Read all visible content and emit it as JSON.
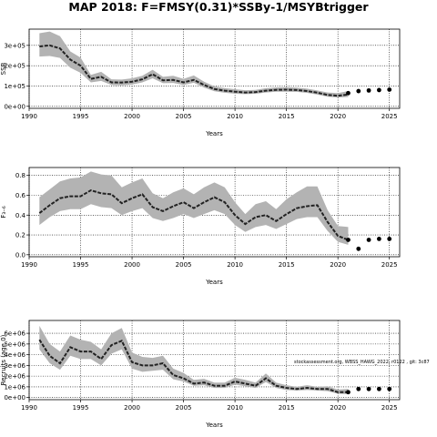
{
  "title": "MAP 2018: F=FMSY(0.31)*SSBy-1/MSYBtrigger",
  "colors": {
    "band": "#b3b3b3",
    "line": "#222222",
    "point": "#000000",
    "grid": "#000000"
  },
  "chart_data": [
    {
      "type": "line",
      "xlabel": "Years",
      "ylabel": "SSB",
      "xlim": [
        1990,
        2026
      ],
      "ylim": [
        -10000,
        380000
      ],
      "x_ticks": [
        1990,
        1995,
        2000,
        2005,
        2010,
        2015,
        2020,
        2025
      ],
      "y_ticks": [
        0,
        100000,
        200000,
        300000
      ],
      "x_tick_labels": [
        "1990",
        "1995",
        "2000",
        "2005",
        "2010",
        "2015",
        "2020",
        "2025"
      ],
      "y_tick_labels": [
        "0e+00",
        "1e+05",
        "2e+05",
        "3e+05"
      ],
      "grid": true,
      "series": [
        {
          "x": [
            1991,
            1992,
            1993,
            1994,
            1995,
            1996,
            1997,
            1998,
            1999,
            2000,
            2001,
            2002,
            2003,
            2004,
            2005,
            2006,
            2007,
            2008,
            2009,
            2010,
            2011,
            2012,
            2013,
            2014,
            2015,
            2016,
            2017,
            2018,
            2019,
            2020,
            2021
          ],
          "median": [
            295000,
            300000,
            285000,
            230000,
            200000,
            135000,
            145000,
            118000,
            117000,
            121000,
            133000,
            158000,
            128000,
            130000,
            118000,
            130000,
            105000,
            85000,
            77000,
            72000,
            68000,
            70000,
            77000,
            81000,
            82000,
            80000,
            75000,
            67000,
            56000,
            52000,
            58000
          ],
          "lower": [
            245000,
            248000,
            238000,
            190000,
            165000,
            118000,
            125000,
            105000,
            103000,
            107000,
            118000,
            138000,
            114000,
            115000,
            105000,
            116000,
            92000,
            74000,
            67000,
            62000,
            60000,
            62000,
            68000,
            72000,
            72000,
            71000,
            66000,
            58000,
            47000,
            43000,
            46000
          ],
          "upper": [
            360000,
            368000,
            345000,
            270000,
            240000,
            155000,
            170000,
            133000,
            132000,
            138000,
            150000,
            180000,
            145000,
            150000,
            135000,
            152000,
            121000,
            98000,
            90000,
            84000,
            79000,
            81000,
            89000,
            93000,
            94000,
            92000,
            87000,
            78000,
            68000,
            65000,
            75000
          ]
        }
      ],
      "projection": {
        "x": [
          2021,
          2022,
          2023,
          2024,
          2025
        ],
        "y": [
          65000,
          75000,
          78000,
          80000,
          82000
        ]
      }
    },
    {
      "type": "line",
      "xlabel": "Years",
      "ylabel": "F₃₋₆",
      "xlim": [
        1990,
        2026
      ],
      "ylim": [
        -0.02,
        0.88
      ],
      "x_ticks": [
        1990,
        1995,
        2000,
        2005,
        2010,
        2015,
        2020,
        2025
      ],
      "y_ticks": [
        0,
        0.2,
        0.4,
        0.6,
        0.8
      ],
      "x_tick_labels": [
        "1990",
        "1995",
        "2000",
        "2005",
        "2010",
        "2015",
        "2020",
        "2025"
      ],
      "y_tick_labels": [
        "0.0",
        "0.2",
        "0.4",
        "0.6",
        "0.8"
      ],
      "grid": true,
      "series": [
        {
          "x": [
            1991,
            1992,
            1993,
            1994,
            1995,
            1996,
            1997,
            1998,
            1999,
            2000,
            2001,
            2002,
            2003,
            2004,
            2005,
            2006,
            2007,
            2008,
            2009,
            2010,
            2011,
            2012,
            2013,
            2014,
            2015,
            2016,
            2017,
            2018,
            2019,
            2020,
            2021
          ],
          "median": [
            0.42,
            0.5,
            0.57,
            0.59,
            0.59,
            0.65,
            0.62,
            0.61,
            0.52,
            0.57,
            0.61,
            0.48,
            0.44,
            0.49,
            0.53,
            0.47,
            0.53,
            0.58,
            0.53,
            0.4,
            0.31,
            0.38,
            0.4,
            0.34,
            0.41,
            0.47,
            0.49,
            0.5,
            0.33,
            0.19,
            0.15
          ],
          "lower": [
            0.3,
            0.38,
            0.44,
            0.46,
            0.46,
            0.51,
            0.48,
            0.47,
            0.4,
            0.44,
            0.47,
            0.37,
            0.34,
            0.37,
            0.41,
            0.37,
            0.41,
            0.45,
            0.41,
            0.3,
            0.23,
            0.28,
            0.3,
            0.26,
            0.31,
            0.36,
            0.38,
            0.38,
            0.24,
            0.13,
            0.1
          ],
          "upper": [
            0.58,
            0.66,
            0.74,
            0.77,
            0.78,
            0.84,
            0.81,
            0.8,
            0.68,
            0.73,
            0.77,
            0.62,
            0.57,
            0.63,
            0.67,
            0.61,
            0.68,
            0.73,
            0.68,
            0.53,
            0.41,
            0.51,
            0.54,
            0.46,
            0.56,
            0.63,
            0.69,
            0.69,
            0.45,
            0.29,
            0.28
          ]
        }
      ],
      "projection": {
        "x": [
          2021,
          2022,
          2023,
          2024,
          2025
        ],
        "y": [
          0.15,
          0.06,
          0.15,
          0.16,
          0.16
        ]
      }
    },
    {
      "type": "line",
      "xlabel": "Years",
      "ylabel": "Recruits (age 0)",
      "annotation": "stockassessment.org, WBSS_HAWG_2022, r0122 , git: 3c87",
      "xlim": [
        1990,
        2026
      ],
      "ylim": [
        -200000,
        7200000
      ],
      "x_ticks": [
        1990,
        1995,
        2000,
        2005,
        2010,
        2015,
        2020,
        2025
      ],
      "y_ticks": [
        0,
        1000000,
        2000000,
        3000000,
        4000000,
        5000000,
        6000000
      ],
      "x_tick_labels": [
        "1990",
        "1995",
        "2000",
        "2005",
        "2010",
        "2015",
        "2020",
        "2025"
      ],
      "y_tick_labels": [
        "0e+00",
        "1e+06",
        "2e+06",
        "3e+06",
        "4e+06",
        "5e+06",
        "6e+06"
      ],
      "grid": true,
      "series": [
        {
          "x": [
            1991,
            1992,
            1993,
            1994,
            1995,
            1996,
            1997,
            1998,
            1999,
            2000,
            2001,
            2002,
            2003,
            2004,
            2005,
            2006,
            2007,
            2008,
            2009,
            2010,
            2011,
            2012,
            2013,
            2014,
            2015,
            2016,
            2017,
            2018,
            2019,
            2020,
            2021
          ],
          "median": [
            5400000,
            3900000,
            3200000,
            4700000,
            4300000,
            4300000,
            3600000,
            4900000,
            5300000,
            3300000,
            3000000,
            3000000,
            3200000,
            2100000,
            1800000,
            1300000,
            1400000,
            1100000,
            1100000,
            1500000,
            1300000,
            1100000,
            1800000,
            1100000,
            900000,
            800000,
            900000,
            800000,
            800000,
            500000,
            500000
          ],
          "lower": [
            4500000,
            3200000,
            2600000,
            3900000,
            3600000,
            3600000,
            3000000,
            4100000,
            4500000,
            2700000,
            2400000,
            2500000,
            2600000,
            1700000,
            1500000,
            1100000,
            1150000,
            900000,
            900000,
            1200000,
            1050000,
            900000,
            1450000,
            900000,
            700000,
            650000,
            700000,
            650000,
            600000,
            350000,
            320000
          ],
          "upper": [
            6700000,
            5000000,
            4300000,
            5800000,
            5400000,
            5200000,
            4500000,
            6000000,
            6500000,
            4200000,
            3800000,
            3700000,
            3900000,
            2700000,
            2300000,
            1650000,
            1750000,
            1400000,
            1400000,
            1850000,
            1650000,
            1400000,
            2250000,
            1400000,
            1150000,
            1000000,
            1150000,
            1000000,
            1050000,
            750000,
            800000
          ]
        }
      ],
      "projection": {
        "x": [
          2021,
          2022,
          2023,
          2024,
          2025
        ],
        "y": [
          500000,
          800000,
          800000,
          800000,
          800000
        ]
      }
    }
  ]
}
